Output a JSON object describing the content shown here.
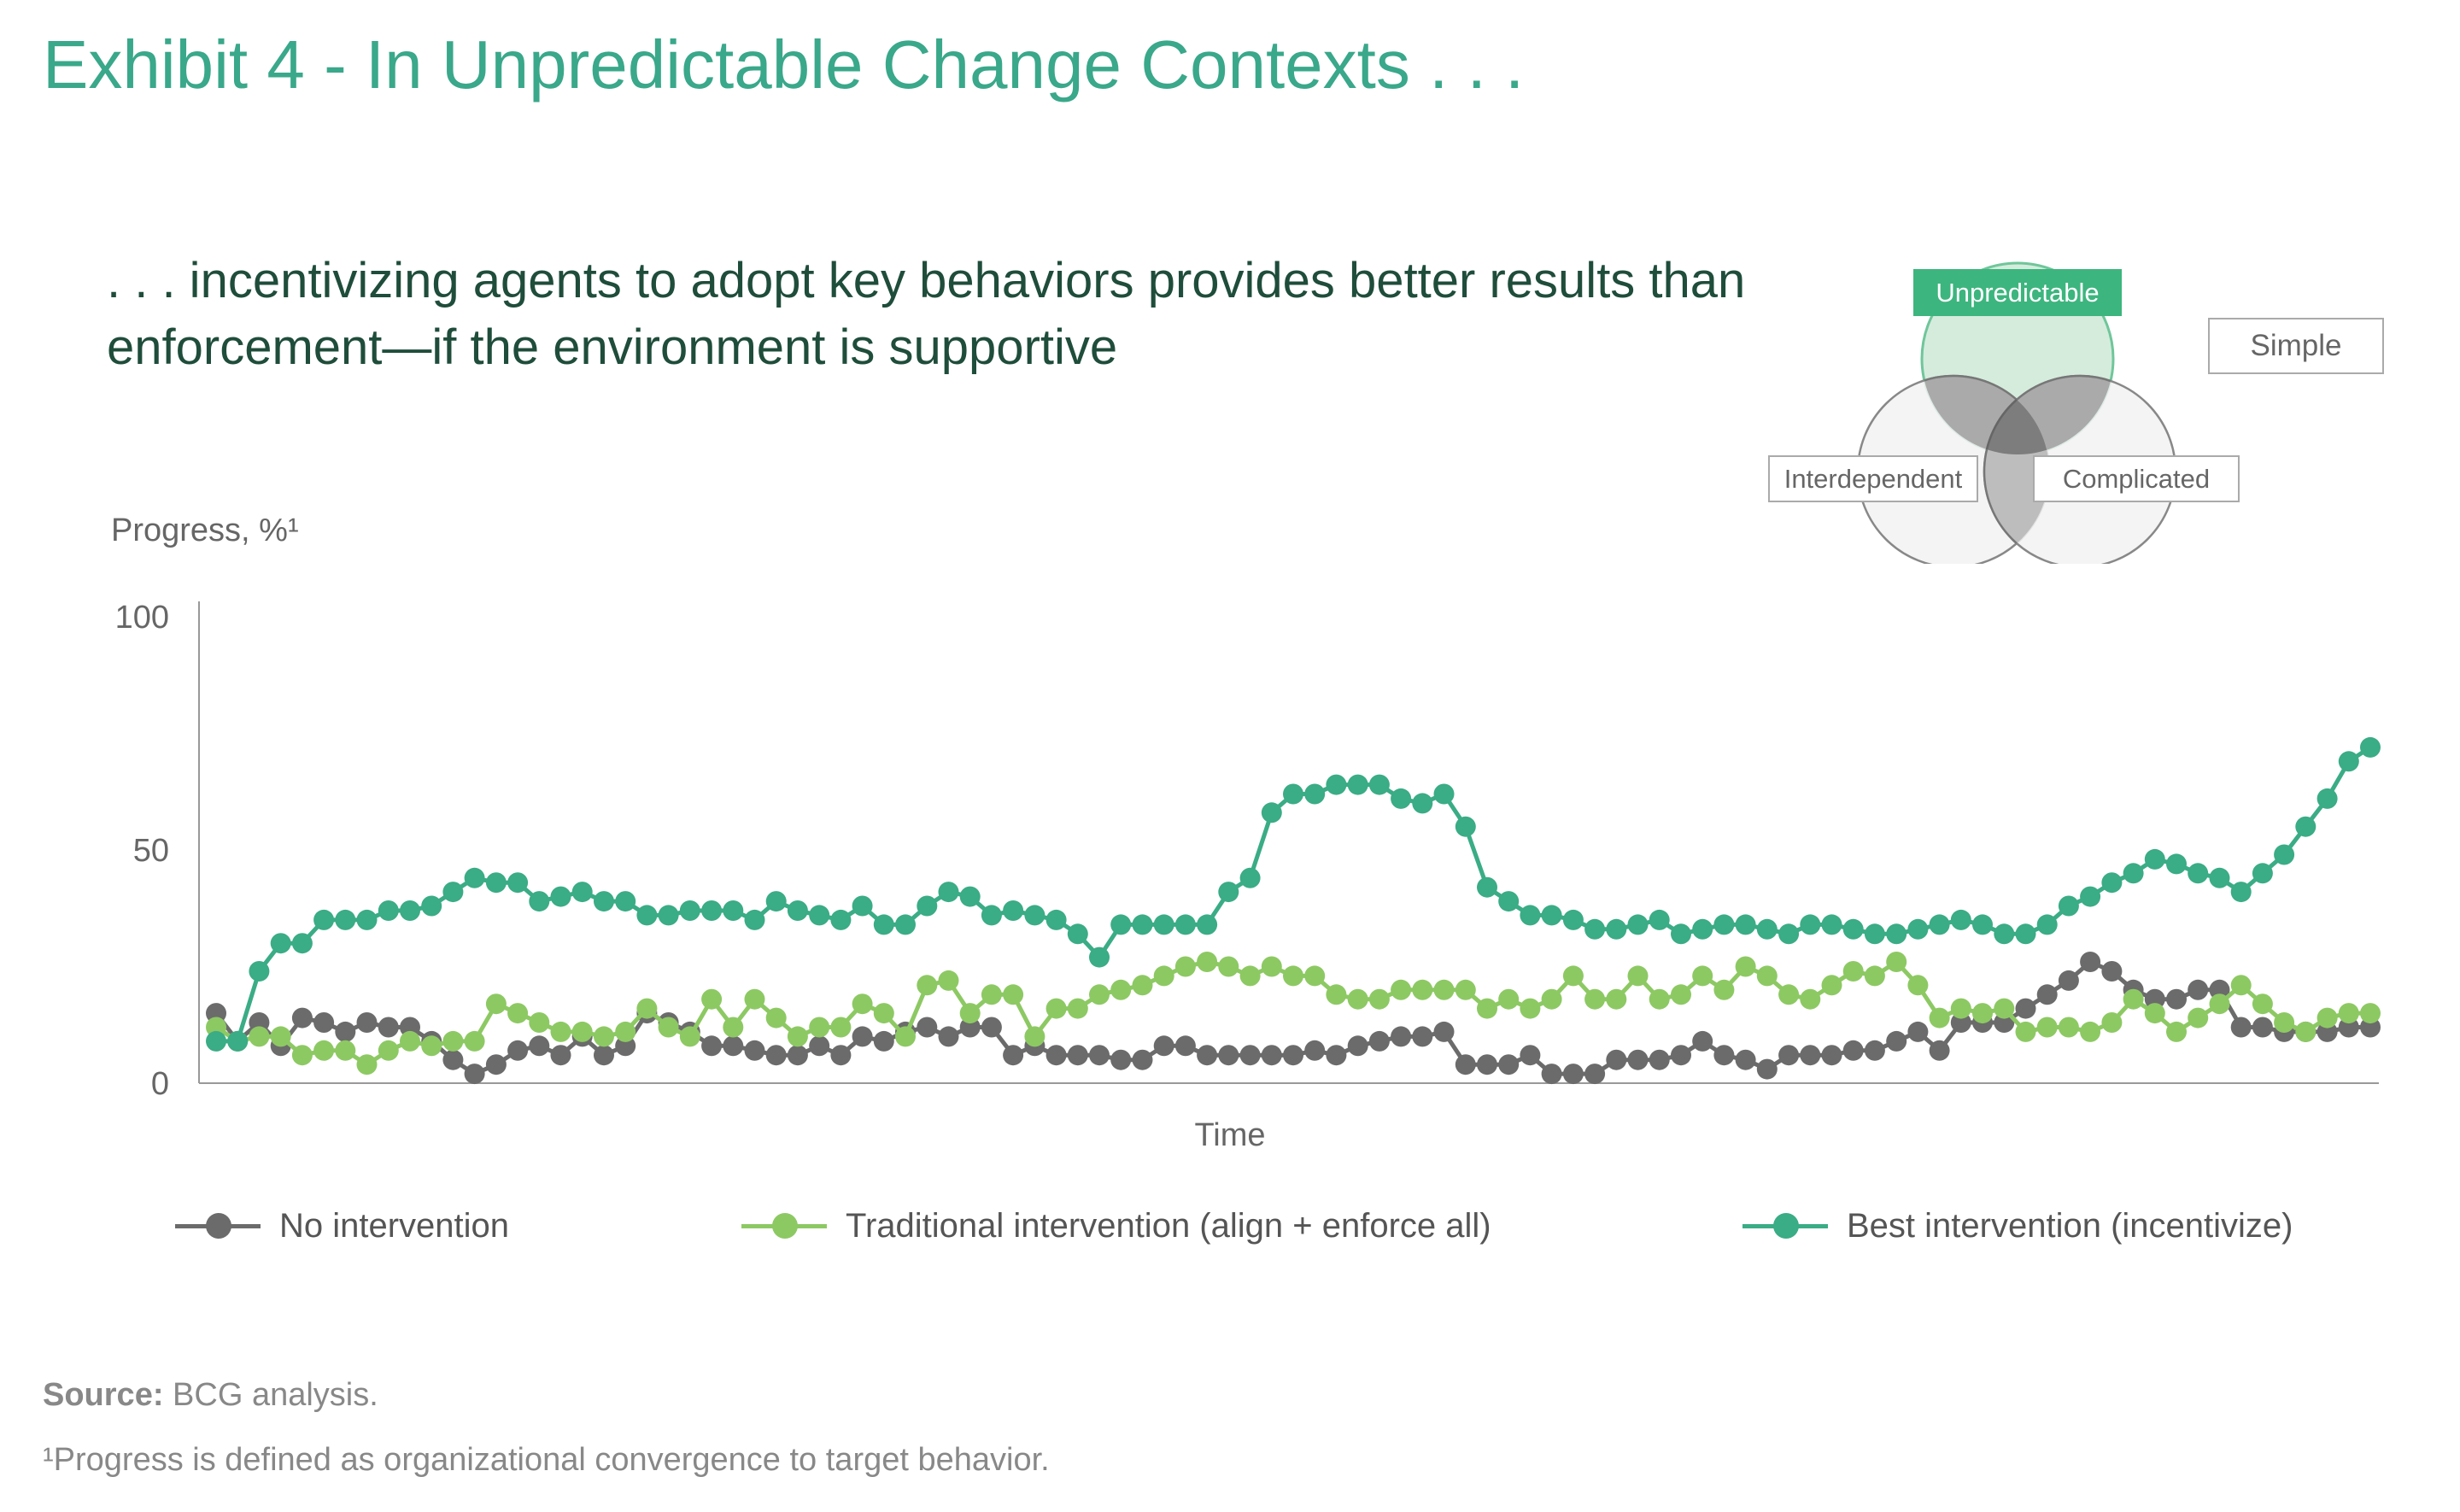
{
  "title": "Exhibit 4 - In Unpredictable Change Contexts . . .",
  "subtitle": ". . . incentivizing agents to adopt key behaviors provides better results than enforcement—if the environment is supportive",
  "venn": {
    "labels": {
      "unpredictable": "Unpredictable",
      "simple": "Simple",
      "interdependent": "Interdependent",
      "complicated": "Complicated"
    },
    "highlighted": "Unpredictable",
    "colors": {
      "highlight": "#3db57e",
      "highlight_fill": "#d5ecdd",
      "gray": "#aaaaaa"
    }
  },
  "chart_data": {
    "type": "line",
    "ylabel": "Progress, %¹",
    "xlabel": "Time",
    "ylim": [
      0,
      100
    ],
    "yticks": [
      0,
      50,
      100
    ],
    "grid": false,
    "legend_position": "bottom",
    "series": [
      {
        "name": "No intervention",
        "color": "#6b6b6b",
        "values": [
          15,
          9,
          13,
          8,
          14,
          13,
          11,
          13,
          12,
          12,
          9,
          5,
          2,
          4,
          7,
          8,
          6,
          10,
          6,
          8,
          15,
          13,
          11,
          8,
          8,
          7,
          6,
          6,
          8,
          6,
          10,
          9,
          11,
          12,
          10,
          12,
          12,
          6,
          8,
          6,
          6,
          6,
          5,
          5,
          8,
          8,
          6,
          6,
          6,
          6,
          6,
          7,
          6,
          8,
          9,
          10,
          10,
          11,
          4,
          4,
          4,
          6,
          2,
          2,
          2,
          5,
          5,
          5,
          6,
          9,
          6,
          5,
          3,
          6,
          6,
          6,
          7,
          7,
          9,
          11,
          7,
          13,
          13,
          13,
          16,
          19,
          22,
          26,
          24,
          20,
          18,
          18,
          20,
          20,
          12,
          12,
          11,
          11,
          11,
          12,
          12
        ]
      },
      {
        "name": "Traditional intervention (align + enforce all)",
        "color": "#8dc963",
        "values": [
          12,
          9,
          10,
          10,
          6,
          7,
          7,
          4,
          7,
          9,
          8,
          9,
          9,
          17,
          15,
          13,
          11,
          11,
          10,
          11,
          16,
          12,
          10,
          18,
          12,
          18,
          14,
          10,
          12,
          12,
          17,
          15,
          10,
          21,
          22,
          15,
          19,
          19,
          10,
          16,
          16,
          19,
          20,
          21,
          23,
          25,
          26,
          25,
          23,
          25,
          23,
          23,
          19,
          18,
          18,
          20,
          20,
          20,
          20,
          16,
          18,
          16,
          18,
          23,
          18,
          18,
          23,
          18,
          19,
          23,
          20,
          25,
          23,
          19,
          18,
          21,
          24,
          23,
          26,
          21,
          14,
          16,
          15,
          16,
          11,
          12,
          12,
          11,
          13,
          18,
          15,
          11,
          14,
          17,
          21,
          17,
          13,
          11,
          14,
          15,
          15
        ]
      },
      {
        "name": "Best intervention (incentivize)",
        "color": "#3aac86",
        "values": [
          9,
          9,
          24,
          30,
          30,
          35,
          35,
          35,
          37,
          37,
          38,
          41,
          44,
          43,
          43,
          39,
          40,
          41,
          39,
          39,
          36,
          36,
          37,
          37,
          37,
          35,
          39,
          37,
          36,
          35,
          38,
          34,
          34,
          38,
          41,
          40,
          36,
          37,
          36,
          35,
          32,
          27,
          34,
          34,
          34,
          34,
          34,
          41,
          44,
          58,
          62,
          62,
          64,
          64,
          64,
          61,
          60,
          62,
          55,
          42,
          39,
          36,
          36,
          35,
          33,
          33,
          34,
          35,
          32,
          33,
          34,
          34,
          33,
          32,
          34,
          34,
          33,
          32,
          32,
          33,
          34,
          35,
          34,
          32,
          32,
          34,
          38,
          40,
          43,
          45,
          48,
          47,
          45,
          44,
          41,
          45,
          49,
          55,
          61,
          69,
          72
        ]
      }
    ]
  },
  "source": {
    "label": "Source:",
    "text": " BCG analysis."
  },
  "footnote": "¹Progress is defined as organizational convergence to target behavior."
}
